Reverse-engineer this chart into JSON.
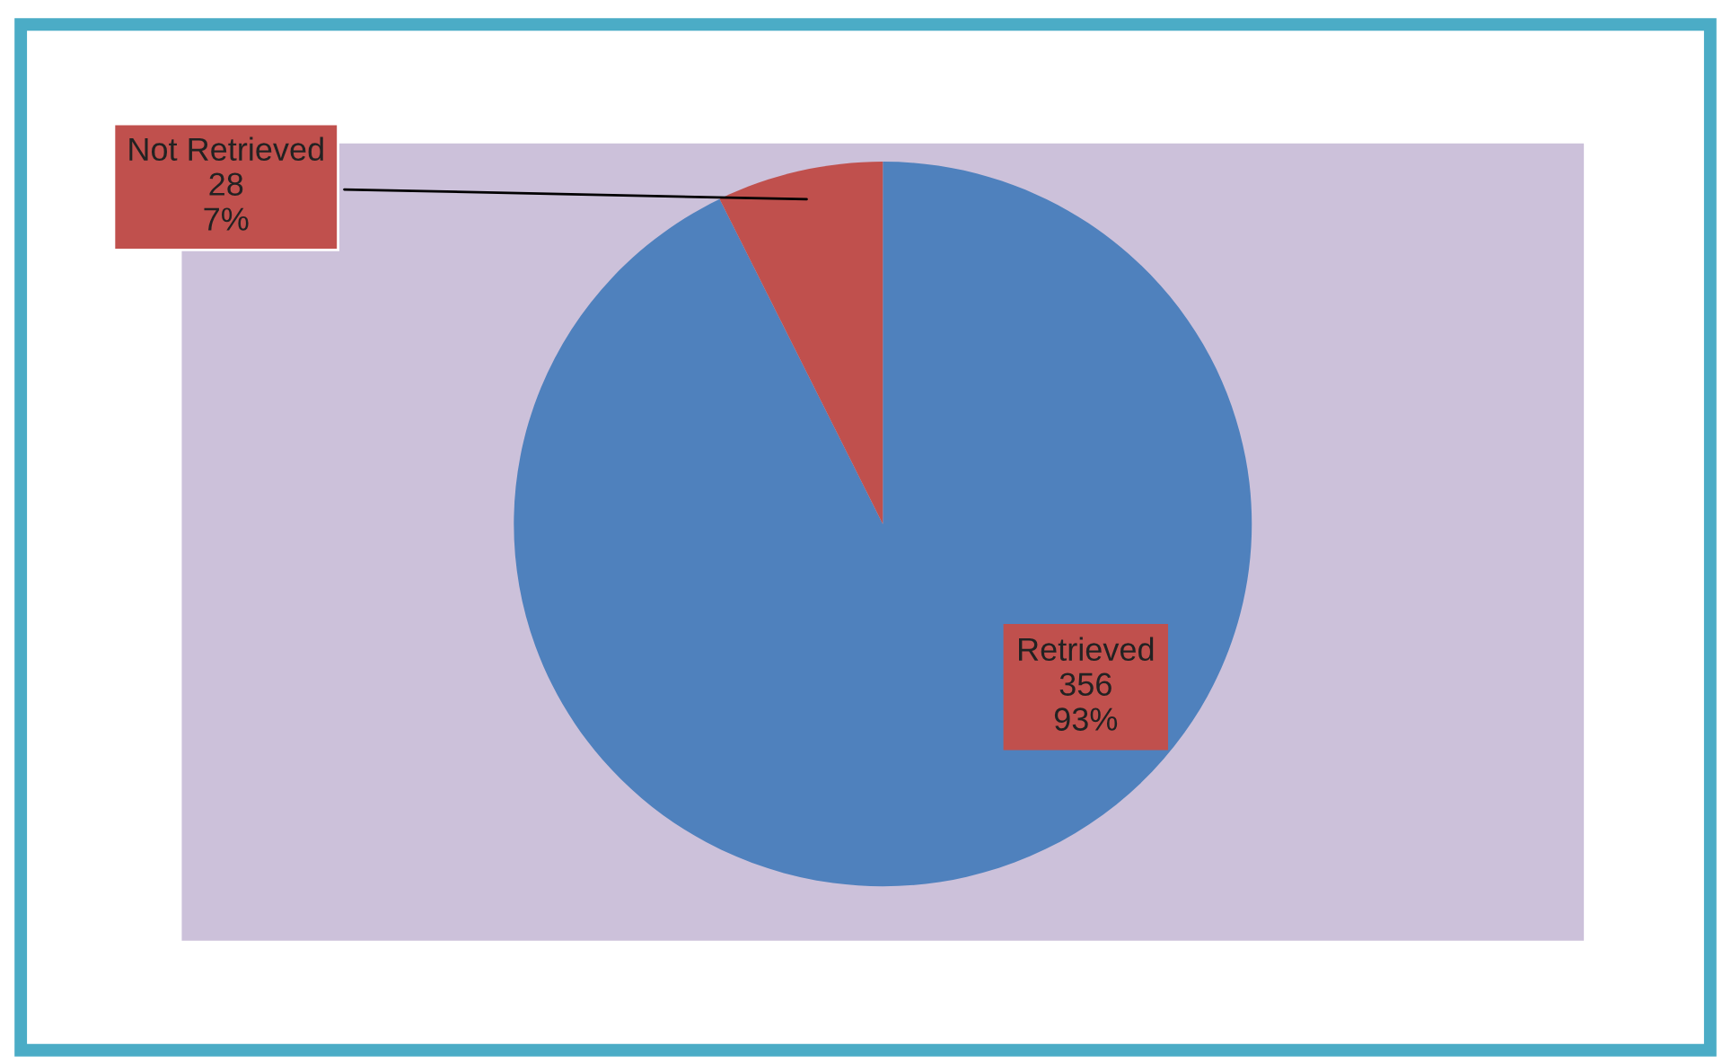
{
  "chart_data": {
    "type": "pie",
    "categories": [
      "Retrieved",
      "Not Retrieved"
    ],
    "values": [
      356,
      28
    ],
    "colors": [
      "#4f81bd",
      "#c0504d"
    ],
    "value_labels": [
      "356\n93%",
      "28\n7%"
    ],
    "legend": false
  }
}
